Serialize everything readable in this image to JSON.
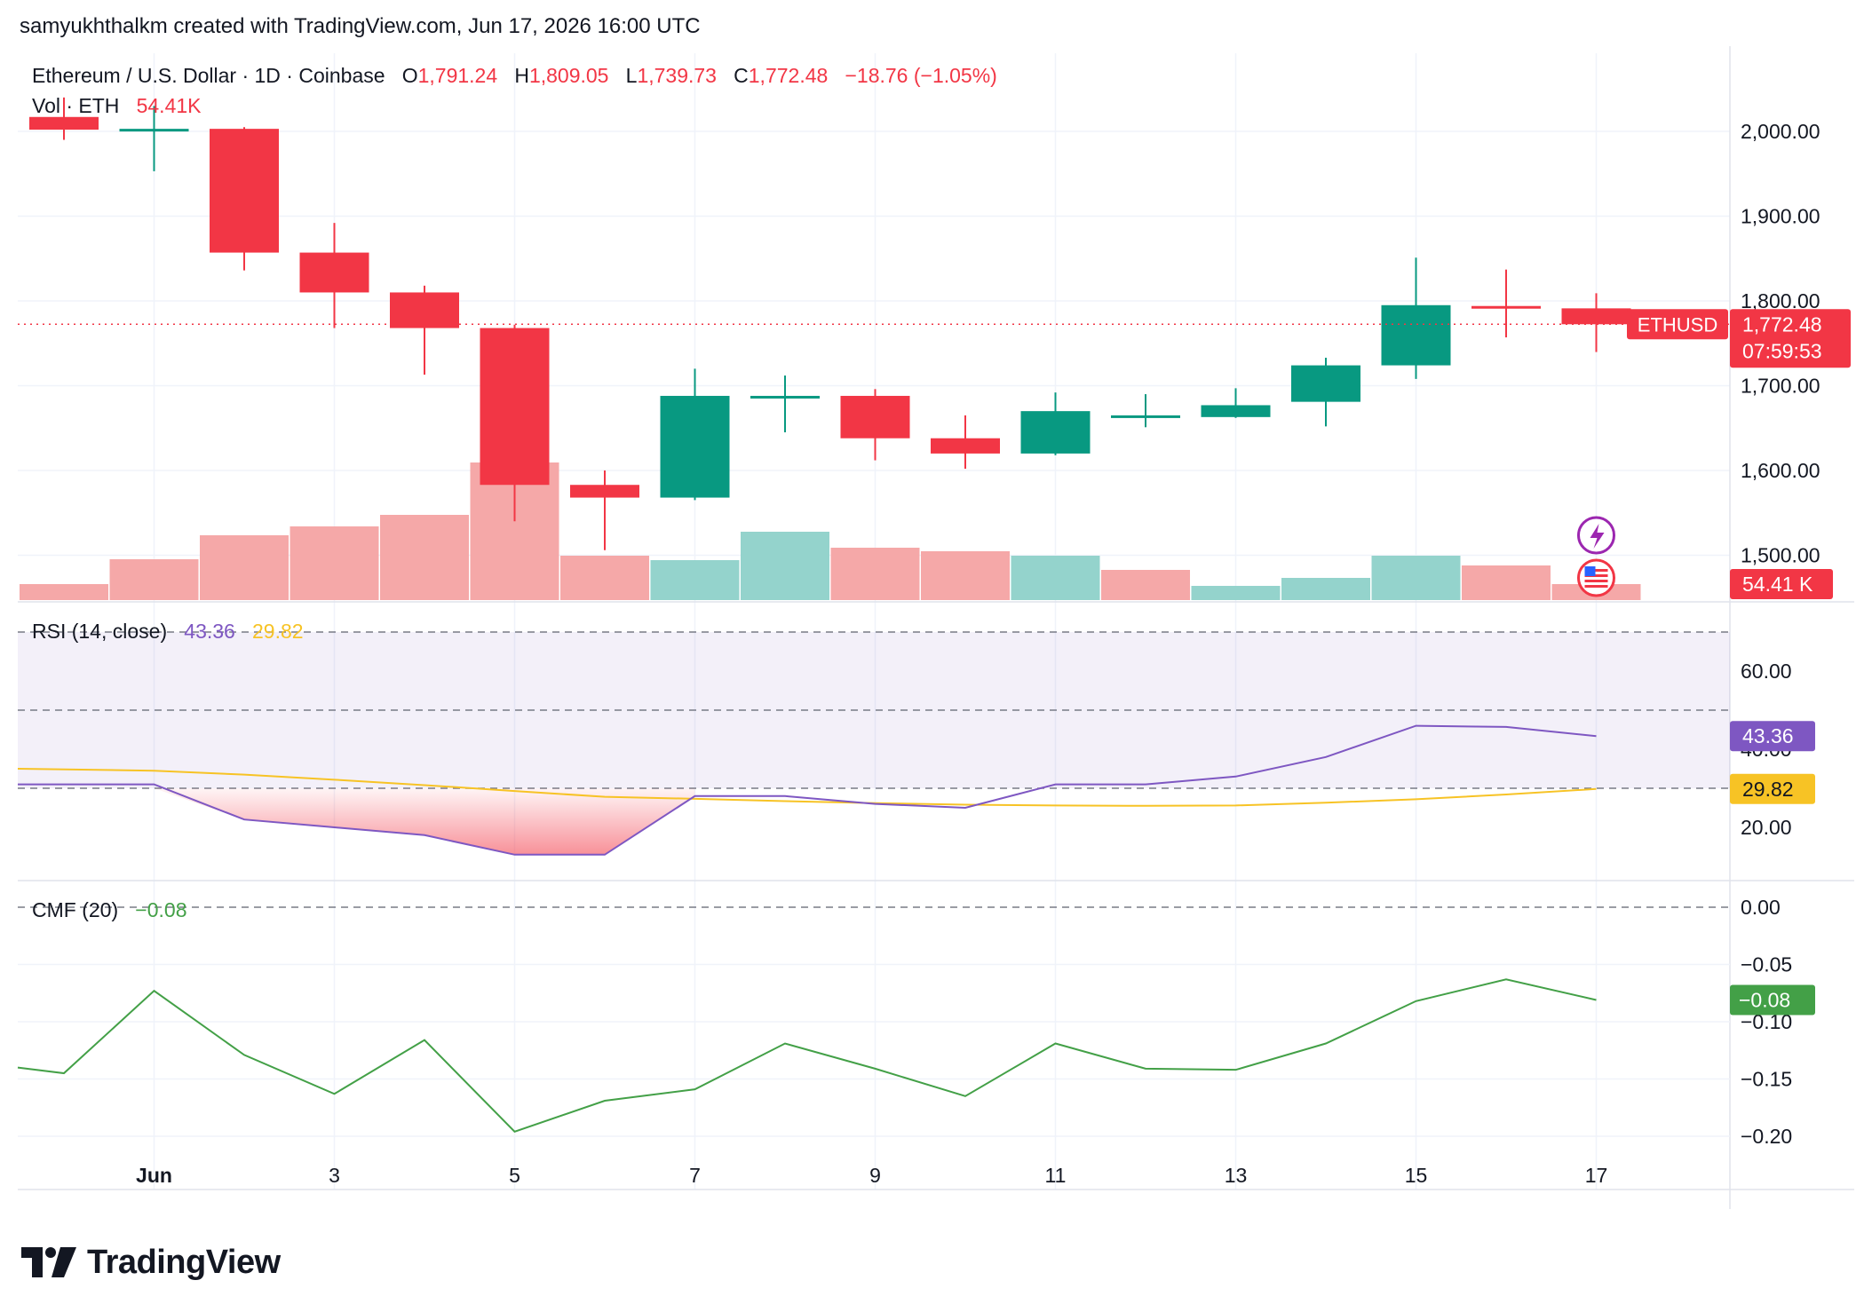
{
  "header": {
    "caption": "samyukhthalkm created with TradingView.com, Jun 17, 2026 16:00 UTC"
  },
  "legend": {
    "symbol": "Ethereum / U.S. Dollar · 1D · Coinbase",
    "o_label": "O",
    "o_value": "1,791.24",
    "h_label": "H",
    "h_value": "1,809.05",
    "l_label": "L",
    "l_value": "1,739.73",
    "c_label": "C",
    "c_value": "1,772.48",
    "change": "−18.76 (−1.05%)",
    "vol_label": "Vol · ETH",
    "vol_value": "54.41K"
  },
  "rsi_legend": {
    "label": "RSI (14, close)",
    "value": "43.36",
    "ma_value": "29.82"
  },
  "cmf_legend": {
    "label": "CMF (20)",
    "value": "−0.08"
  },
  "price_tag": {
    "symbol": "ETHUSD",
    "price": "1,772.48",
    "countdown": "07:59:53"
  },
  "volume_tag": "54.41 K",
  "rsi_tags": {
    "rsi": "43.36",
    "ma": "29.82"
  },
  "cmf_tag": "−0.08",
  "logo": {
    "text": "TradingView"
  },
  "colors": {
    "up": "#089981",
    "down": "#f23645",
    "up_vol": "#94d3cc",
    "down_vol": "#f5a8a8",
    "rsi": "#7e57c2",
    "rsi_ma": "#f7c325",
    "cmf": "#43a047",
    "grid": "#f0f3fa",
    "axis_text": "#131722"
  },
  "icons": [
    "lightning-event-icon",
    "us-flag-icon"
  ],
  "chart_data": [
    {
      "type": "candlestick",
      "title": "Ethereum / U.S. Dollar · 1D · Coinbase",
      "x": [
        "May 31",
        "Jun 1",
        "Jun 2",
        "Jun 3",
        "Jun 4",
        "Jun 5",
        "Jun 6",
        "Jun 7",
        "Jun 8",
        "Jun 9",
        "Jun 10",
        "Jun 11",
        "Jun 12",
        "Jun 13",
        "Jun 14",
        "Jun 15",
        "Jun 16",
        "Jun 17"
      ],
      "x_tick_labels": [
        "Jun",
        "3",
        "5",
        "7",
        "9",
        "11",
        "13",
        "15",
        "17"
      ],
      "open": [
        2017,
        2002,
        2003,
        1857,
        1810,
        1768,
        1583,
        1568,
        1688,
        1688,
        1638,
        1620,
        1665,
        1663,
        1681,
        1724,
        1794,
        1791.24
      ],
      "high": [
        2040,
        2030,
        2005,
        1892,
        1818,
        1772,
        1600,
        1720,
        1712,
        1696,
        1665,
        1692,
        1690,
        1697,
        1733,
        1851,
        1837,
        1809.05
      ],
      "low": [
        1990,
        1953,
        1836,
        1768,
        1713,
        1540,
        1506,
        1565,
        1645,
        1612,
        1602,
        1618,
        1651,
        1662,
        1652,
        1708,
        1757,
        1739.73
      ],
      "close": [
        2002,
        2003,
        1857,
        1810,
        1768,
        1583,
        1568,
        1688,
        1688,
        1638,
        1620,
        1670,
        1665,
        1677,
        1724,
        1795,
        1791,
        1772.48
      ],
      "y_ticks": [
        1500,
        1600,
        1700,
        1800,
        1900,
        2000
      ],
      "y_tick_labels": [
        "1,500.00",
        "1,600.00",
        "1,700.00",
        "1,800.00",
        "1,900.00",
        "2,000.00"
      ],
      "last_price": 1772.48
    },
    {
      "type": "bar",
      "title": "Vol · ETH",
      "x": [
        "May 31",
        "Jun 1",
        "Jun 2",
        "Jun 3",
        "Jun 4",
        "Jun 5",
        "Jun 6",
        "Jun 7",
        "Jun 8",
        "Jun 9",
        "Jun 10",
        "Jun 11",
        "Jun 12",
        "Jun 13",
        "Jun 14",
        "Jun 15",
        "Jun 16",
        "Jun 17"
      ],
      "values": [
        18,
        46,
        73,
        83,
        96,
        155,
        50,
        45,
        77,
        59,
        55,
        50,
        34,
        16,
        25,
        50,
        39,
        18
      ],
      "direction": [
        "down",
        "down",
        "down",
        "down",
        "down",
        "down",
        "down",
        "up",
        "up",
        "down",
        "down",
        "up",
        "down",
        "up",
        "up",
        "up",
        "down",
        "down"
      ],
      "unit": "relative"
    },
    {
      "type": "line",
      "title": "RSI (14, close)",
      "x": [
        "May 31",
        "Jun 1",
        "Jun 2",
        "Jun 3",
        "Jun 4",
        "Jun 5",
        "Jun 6",
        "Jun 7",
        "Jun 8",
        "Jun 9",
        "Jun 10",
        "Jun 11",
        "Jun 12",
        "Jun 13",
        "Jun 14",
        "Jun 15",
        "Jun 16",
        "Jun 17"
      ],
      "series": [
        {
          "name": "RSI",
          "values": [
            31,
            31,
            22,
            20,
            18,
            13,
            13,
            28,
            28,
            26,
            25,
            31,
            31,
            33,
            38,
            46,
            45.7,
            43.36
          ]
        },
        {
          "name": "RSI-based MA",
          "values": [
            35,
            34.5,
            33.5,
            32.2,
            30.8,
            29.3,
            27.8,
            27.3,
            26.7,
            26.2,
            25.8,
            25.6,
            25.5,
            25.6,
            26.3,
            27.2,
            28.4,
            29.82
          ]
        }
      ],
      "bands": {
        "upper": 70,
        "middle": 50,
        "lower": 30
      },
      "y_ticks": [
        20,
        40,
        60
      ],
      "y_tick_labels": [
        "20.00",
        "40.00",
        "60.00"
      ]
    },
    {
      "type": "line",
      "title": "CMF (20)",
      "x": [
        "May 31",
        "Jun 1",
        "Jun 2",
        "Jun 3",
        "Jun 4",
        "Jun 5",
        "Jun 6",
        "Jun 7",
        "Jun 8",
        "Jun 9",
        "Jun 10",
        "Jun 11",
        "Jun 12",
        "Jun 13",
        "Jun 14",
        "Jun 15",
        "Jun 16",
        "Jun 17"
      ],
      "series": [
        {
          "name": "CMF",
          "values": [
            -0.145,
            -0.073,
            -0.129,
            -0.163,
            -0.116,
            -0.196,
            -0.169,
            -0.159,
            -0.119,
            -0.141,
            -0.165,
            -0.119,
            -0.141,
            -0.142,
            -0.119,
            -0.082,
            -0.063,
            -0.081
          ]
        }
      ],
      "zero_line": 0,
      "y_ticks": [
        0.0,
        -0.05,
        -0.1,
        -0.15,
        -0.2
      ],
      "y_tick_labels": [
        "0.00",
        "−0.05",
        "−0.10",
        "−0.15",
        "−0.20"
      ]
    }
  ]
}
